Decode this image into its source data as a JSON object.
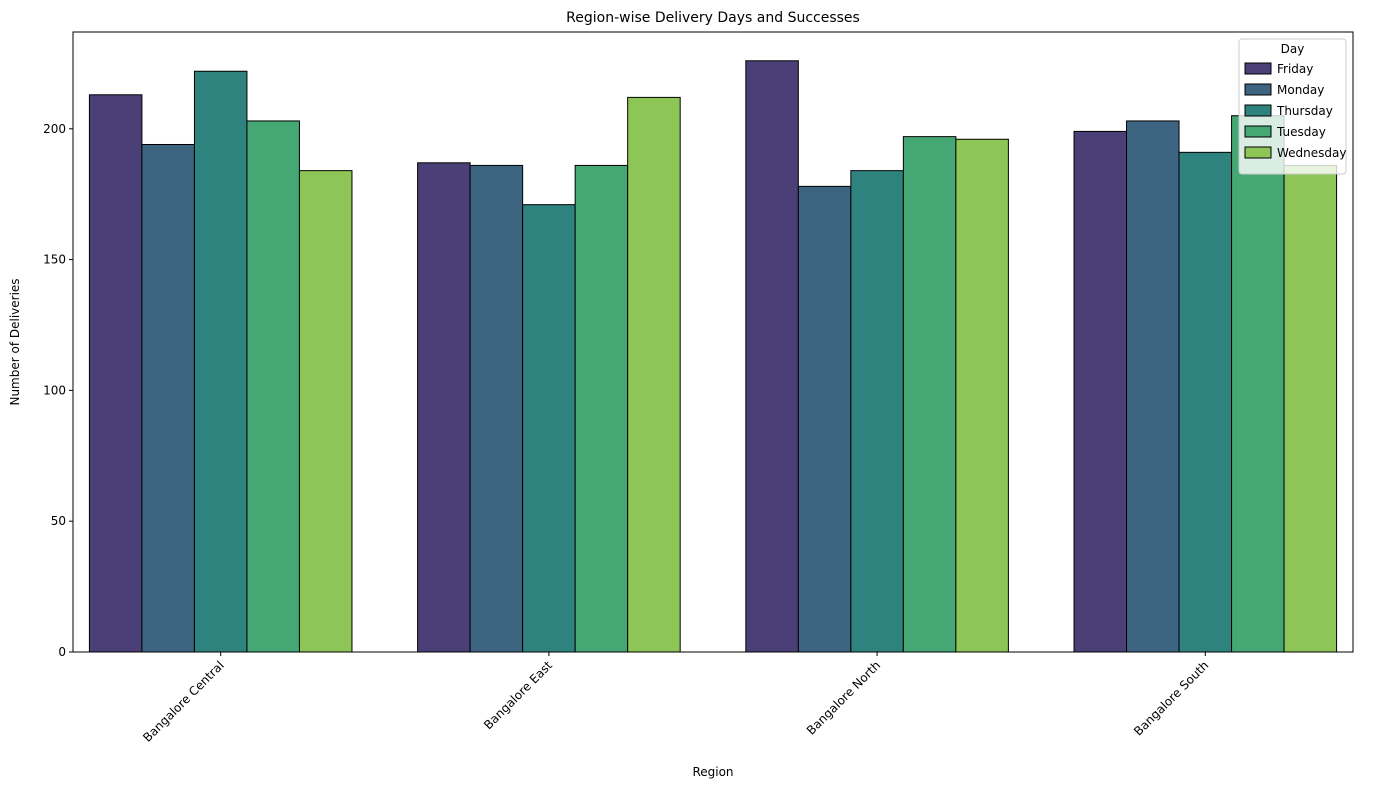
{
  "chart_data": {
    "type": "bar",
    "title": "Region-wise Delivery Days and Successes",
    "xlabel": "Region",
    "ylabel": "Number of Deliveries",
    "categories": [
      "Bangalore Central",
      "Bangalore East",
      "Bangalore North",
      "Bangalore South"
    ],
    "ylim": [
      0,
      237
    ],
    "yticks": [
      0,
      50,
      100,
      150,
      200
    ],
    "grid": false,
    "legend": {
      "title": "Day",
      "placement": "top-right"
    },
    "series": [
      {
        "name": "Friday",
        "color": "#4a3f77",
        "values": [
          213,
          187,
          226,
          199
        ]
      },
      {
        "name": "Monday",
        "color": "#3d6481",
        "values": [
          194,
          186,
          178,
          203
        ]
      },
      {
        "name": "Thursday",
        "color": "#2e837f",
        "values": [
          222,
          171,
          184,
          191
        ]
      },
      {
        "name": "Tuesday",
        "color": "#45a774",
        "values": [
          203,
          186,
          197,
          205
        ]
      },
      {
        "name": "Wednesday",
        "color": "#8ec557",
        "values": [
          184,
          212,
          196,
          186
        ]
      }
    ]
  }
}
